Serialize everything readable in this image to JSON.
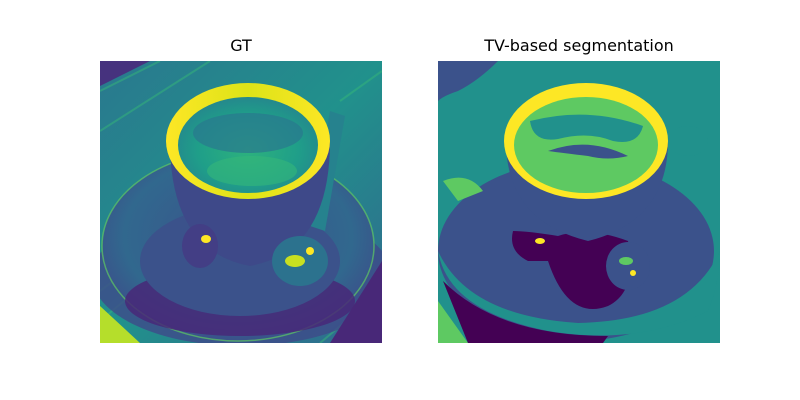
{
  "panels": [
    {
      "title": "GT"
    },
    {
      "title": "TV-based segmentation"
    }
  ],
  "colormap": {
    "name": "viridis",
    "dark_purple": "#440154",
    "blue": "#3b528b",
    "teal": "#21918c",
    "green": "#5ec962",
    "yellow": "#fde725"
  }
}
